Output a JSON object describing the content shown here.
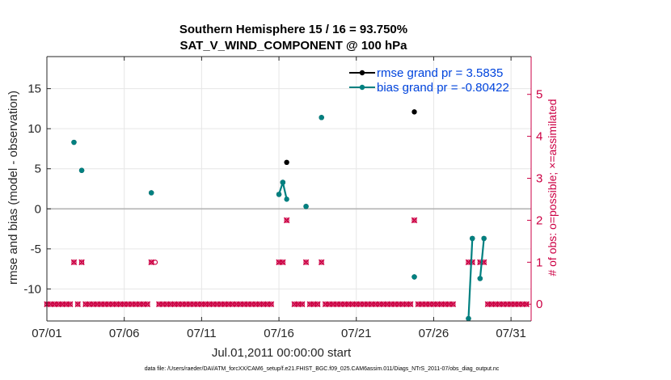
{
  "chart_data": {
    "type": "scatter",
    "title": "Southern Hemisphere 15 / 16 = 93.750%",
    "subtitle": "SAT_V_WIND_COMPONENT @ 100 hPa",
    "xlabel": "Jul.01,2011 00:00:00 start",
    "ylabel": "rmse and bias (model - observation)",
    "y2label": "# of obs: o=possible; ×=assimilated",
    "footnote": "data file: /Users/raeder/DAI/ATM_forcXX/CAM6_setup/f.e21.FHIST_BGC.f09_025.CAM6assim.011/Diags_NTrS_2011-07/obs_diag_output.nc",
    "xlim": [
      0,
      31.3
    ],
    "ylim": [
      -14,
      19
    ],
    "y2lim": [
      -0.4,
      5.9
    ],
    "xticks": [
      0,
      5,
      10,
      15,
      20,
      25,
      30
    ],
    "xticklabels": [
      "07/01",
      "07/06",
      "07/11",
      "07/16",
      "07/21",
      "07/26",
      "07/31"
    ],
    "yticks": [
      -10,
      -5,
      0,
      5,
      10,
      15
    ],
    "yticklabels": [
      "-10",
      "-5",
      "0",
      "5",
      "10",
      "15"
    ],
    "y2ticks": [
      0,
      1,
      2,
      3,
      4,
      5
    ],
    "y2ticklabels": [
      "0",
      "1",
      "2",
      "3",
      "4",
      "5"
    ],
    "zero_line": 0,
    "legend": {
      "position": "top-right",
      "entries": [
        {
          "label": "rmse grand pr = 3.5835",
          "color": "#000000"
        },
        {
          "label": "bias grand pr = -0.80422",
          "color": "#008080"
        }
      ]
    },
    "series": [
      {
        "name": "rmse grand pr = 3.5835",
        "color": "#000000",
        "axis": "left",
        "points": [
          [
            1.75,
            8.3
          ],
          [
            2.25,
            4.8
          ],
          [
            6.75,
            2.0
          ],
          [
            15.0,
            1.8
          ],
          [
            15.25,
            3.3
          ],
          [
            15.5,
            5.8
          ],
          [
            16.75,
            0.3
          ],
          [
            17.75,
            11.4
          ],
          [
            23.75,
            12.1
          ],
          [
            23.75,
            -8.5
          ],
          [
            27.25,
            -13.7
          ],
          [
            27.5,
            -3.7
          ],
          [
            28.0,
            -8.7
          ],
          [
            28.25,
            -3.7
          ]
        ],
        "segments": []
      },
      {
        "name": "bias grand pr = -0.80422",
        "color": "#008080",
        "axis": "left",
        "points": [
          [
            1.75,
            8.3
          ],
          [
            2.25,
            4.8
          ],
          [
            6.75,
            2.0
          ],
          [
            15.0,
            1.8
          ],
          [
            15.25,
            3.3
          ],
          [
            15.5,
            1.2
          ],
          [
            16.75,
            0.3
          ],
          [
            17.75,
            11.4
          ],
          [
            23.75,
            -8.5
          ],
          [
            27.25,
            -13.7
          ],
          [
            27.5,
            -3.7
          ],
          [
            28.0,
            -8.7
          ],
          [
            28.25,
            -3.7
          ]
        ],
        "segments": [
          [
            [
              15.0,
              1.8
            ],
            [
              15.25,
              3.3
            ],
            [
              15.5,
              1.2
            ]
          ],
          [
            [
              27.25,
              -13.7
            ],
            [
              27.5,
              -3.7
            ]
          ],
          [
            [
              28.0,
              -8.7
            ],
            [
              28.25,
              -3.7
            ]
          ]
        ]
      },
      {
        "name": "obs possible (o)",
        "color": "#cc0044",
        "axis": "right",
        "marker": "o",
        "x_start": 0,
        "x_end": 31,
        "x_step": 0.25,
        "default": 0,
        "overrides": [
          [
            1.75,
            1
          ],
          [
            2.25,
            1
          ],
          [
            6.75,
            1
          ],
          [
            7.0,
            1
          ],
          [
            15.0,
            1
          ],
          [
            15.25,
            1
          ],
          [
            15.5,
            2
          ],
          [
            16.75,
            1
          ],
          [
            17.75,
            1
          ],
          [
            23.75,
            2
          ],
          [
            27.25,
            1
          ],
          [
            27.5,
            1
          ],
          [
            28.0,
            1
          ],
          [
            28.25,
            1
          ]
        ],
        "gaps": [
          [
            14.75,
            14.75
          ],
          [
            15.75,
            15.75
          ],
          [
            26.5,
            27.25
          ],
          [
            27.75,
            27.75
          ]
        ]
      },
      {
        "name": "obs assimilated (×)",
        "color": "#cc0044",
        "axis": "right",
        "marker": "x",
        "x_start": 0,
        "x_end": 31,
        "x_step": 0.25,
        "default": 0,
        "overrides": [
          [
            1.75,
            1
          ],
          [
            2.25,
            1
          ],
          [
            6.75,
            1
          ],
          [
            15.0,
            1
          ],
          [
            15.25,
            1
          ],
          [
            15.5,
            2
          ],
          [
            16.75,
            1
          ],
          [
            17.75,
            1
          ],
          [
            23.75,
            2
          ],
          [
            27.25,
            1
          ],
          [
            27.5,
            1
          ],
          [
            28.0,
            1
          ],
          [
            28.25,
            1
          ]
        ],
        "exclude": [
          7.0
        ],
        "gaps": [
          [
            14.75,
            14.75
          ],
          [
            15.75,
            15.75
          ],
          [
            26.5,
            27.25
          ],
          [
            27.75,
            27.75
          ]
        ]
      }
    ]
  }
}
